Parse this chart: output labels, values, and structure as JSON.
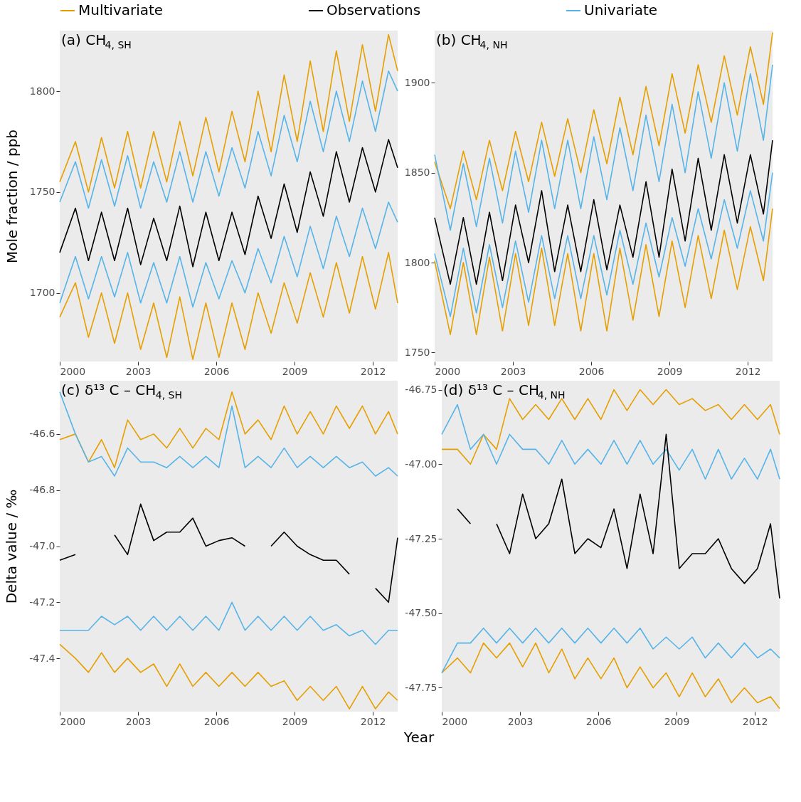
{
  "chart_data": [
    {
      "type": "line",
      "title": "(a) CH$_{4, SH}$",
      "ylabel": "Mole fraction / ppb",
      "legend": "top",
      "grid": false,
      "x": [
        2000.0,
        2000.6,
        2001.1,
        2001.6,
        2002.1,
        2002.6,
        2003.1,
        2003.6,
        2004.1,
        2004.6,
        2005.1,
        2005.6,
        2006.1,
        2006.6,
        2007.1,
        2007.6,
        2008.1,
        2008.6,
        2009.1,
        2009.6,
        2010.1,
        2010.6,
        2011.1,
        2011.6,
        2012.1,
        2012.6,
        2012.95
      ],
      "xlim": [
        2000,
        2012.95
      ],
      "xticks": [
        2000,
        2003,
        2006,
        2009,
        2012
      ],
      "ylim": [
        1666,
        1830
      ],
      "yticks": [
        1700,
        1750,
        1800
      ],
      "series": [
        {
          "name": "Multivariate",
          "color": "#e69f00",
          "values": [
            1755,
            1775,
            1750,
            1777,
            1752,
            1780,
            1752,
            1780,
            1755,
            1785,
            1758,
            1787,
            1760,
            1790,
            1765,
            1800,
            1770,
            1808,
            1775,
            1815,
            1780,
            1820,
            1785,
            1823,
            1790,
            1828,
            1810
          ]
        },
        {
          "color": "#e69f00",
          "values": [
            1688,
            1705,
            1678,
            1700,
            1675,
            1700,
            1672,
            1695,
            1668,
            1698,
            1667,
            1695,
            1668,
            1695,
            1672,
            1700,
            1680,
            1705,
            1685,
            1710,
            1688,
            1715,
            1690,
            1718,
            1692,
            1720,
            1695
          ]
        },
        {
          "name": "Univariate",
          "color": "#56b4e9",
          "values": [
            1745,
            1765,
            1742,
            1766,
            1743,
            1768,
            1742,
            1765,
            1745,
            1770,
            1745,
            1770,
            1748,
            1772,
            1752,
            1780,
            1758,
            1788,
            1765,
            1795,
            1770,
            1800,
            1775,
            1805,
            1780,
            1810,
            1800
          ]
        },
        {
          "color": "#56b4e9",
          "values": [
            1695,
            1718,
            1697,
            1718,
            1698,
            1720,
            1695,
            1715,
            1695,
            1718,
            1693,
            1715,
            1697,
            1716,
            1700,
            1722,
            1705,
            1728,
            1708,
            1733,
            1712,
            1738,
            1718,
            1742,
            1722,
            1745,
            1735
          ]
        },
        {
          "name": "Observations",
          "color": "#000000",
          "values": [
            1720,
            1742,
            1716,
            1740,
            1716,
            1742,
            1714,
            1737,
            1716,
            1743,
            1713,
            1740,
            1716,
            1740,
            1719,
            1748,
            1727,
            1754,
            1730,
            1760,
            1738,
            1770,
            1745,
            1772,
            1750,
            1776,
            1762
          ]
        }
      ]
    },
    {
      "type": "line",
      "title": "(b) CH$_{4, NH}$",
      "grid": false,
      "x": [
        2000.0,
        2000.6,
        2001.1,
        2001.6,
        2002.1,
        2002.6,
        2003.1,
        2003.6,
        2004.1,
        2004.6,
        2005.1,
        2005.6,
        2006.1,
        2006.6,
        2007.1,
        2007.6,
        2008.1,
        2008.6,
        2009.1,
        2009.6,
        2010.1,
        2010.6,
        2011.1,
        2011.6,
        2012.1,
        2012.6,
        2012.95
      ],
      "xlim": [
        2000,
        2012.95
      ],
      "xticks": [
        2000,
        2003,
        2006,
        2009,
        2012
      ],
      "ylim": [
        1745,
        1929
      ],
      "yticks": [
        1750,
        1800,
        1850,
        1900
      ],
      "series": [
        {
          "name": "Multivariate",
          "color": "#e69f00",
          "values": [
            1856,
            1830,
            1862,
            1835,
            1868,
            1840,
            1873,
            1845,
            1878,
            1848,
            1880,
            1850,
            1885,
            1855,
            1892,
            1860,
            1898,
            1865,
            1905,
            1872,
            1910,
            1878,
            1915,
            1882,
            1920,
            1888,
            1928
          ]
        },
        {
          "color": "#e69f00",
          "values": [
            1801,
            1760,
            1800,
            1760,
            1803,
            1762,
            1805,
            1765,
            1808,
            1765,
            1805,
            1762,
            1805,
            1762,
            1808,
            1768,
            1810,
            1770,
            1812,
            1775,
            1815,
            1780,
            1818,
            1785,
            1820,
            1790,
            1830
          ]
        },
        {
          "name": "Univariate",
          "color": "#56b4e9",
          "values": [
            1860,
            1818,
            1855,
            1820,
            1858,
            1822,
            1862,
            1828,
            1868,
            1830,
            1868,
            1830,
            1870,
            1835,
            1875,
            1840,
            1882,
            1845,
            1888,
            1850,
            1895,
            1858,
            1900,
            1862,
            1905,
            1868,
            1910
          ]
        },
        {
          "color": "#56b4e9",
          "values": [
            1805,
            1770,
            1808,
            1772,
            1810,
            1775,
            1812,
            1778,
            1815,
            1780,
            1815,
            1780,
            1815,
            1782,
            1818,
            1788,
            1822,
            1792,
            1825,
            1798,
            1830,
            1802,
            1835,
            1808,
            1840,
            1812,
            1850
          ]
        },
        {
          "name": "Observations",
          "color": "#000000",
          "values": [
            1825,
            1788,
            1825,
            1788,
            1828,
            1790,
            1832,
            1800,
            1840,
            1795,
            1832,
            1795,
            1835,
            1796,
            1832,
            1803,
            1845,
            1803,
            1852,
            1812,
            1858,
            1818,
            1860,
            1822,
            1860,
            1827,
            1868
          ]
        }
      ]
    },
    {
      "type": "line",
      "title": "(c) δ¹³ C – CH$_{4, SH}$",
      "ylabel": "Delta value / ‰",
      "xlabel": "Year",
      "grid": false,
      "x": [
        2000.0,
        2000.6,
        2001.1,
        2001.6,
        2002.1,
        2002.6,
        2003.1,
        2003.6,
        2004.1,
        2004.6,
        2005.1,
        2005.6,
        2006.1,
        2006.6,
        2007.1,
        2007.6,
        2008.1,
        2008.6,
        2009.1,
        2009.6,
        2010.1,
        2010.6,
        2011.1,
        2011.6,
        2012.1,
        2012.6,
        2012.95
      ],
      "xlim": [
        2000,
        2012.95
      ],
      "xticks": [
        2000,
        2003,
        2006,
        2009,
        2012
      ],
      "ylim": [
        -47.59,
        -46.41
      ],
      "yticks": [
        -47.4,
        -47.2,
        {
          "value": -47.0,
          "label": "-47.0"
        },
        -46.8,
        -46.6
      ],
      "series": [
        {
          "name": "Multivariate",
          "color": "#e69f00",
          "values": [
            -46.62,
            -46.6,
            -46.7,
            -46.62,
            -46.72,
            -46.55,
            -46.62,
            -46.6,
            -46.65,
            -46.58,
            -46.65,
            -46.58,
            -46.62,
            -46.45,
            -46.6,
            -46.55,
            -46.62,
            -46.5,
            -46.6,
            -46.52,
            -46.6,
            -46.5,
            -46.58,
            -46.5,
            -46.6,
            -46.52,
            -46.6
          ]
        },
        {
          "color": "#e69f00",
          "values": [
            -47.35,
            -47.4,
            -47.45,
            -47.38,
            -47.45,
            -47.4,
            -47.45,
            -47.42,
            -47.5,
            -47.42,
            -47.5,
            -47.45,
            -47.5,
            -47.45,
            -47.5,
            -47.45,
            -47.5,
            -47.48,
            -47.55,
            -47.5,
            -47.55,
            -47.5,
            -47.58,
            -47.5,
            -47.58,
            -47.52,
            -47.55
          ]
        },
        {
          "name": "Univariate",
          "color": "#56b4e9",
          "values": [
            -46.45,
            -46.6,
            -46.7,
            -46.68,
            -46.75,
            -46.65,
            -46.7,
            -46.7,
            -46.72,
            -46.68,
            -46.72,
            -46.68,
            -46.72,
            -46.5,
            -46.72,
            -46.68,
            -46.72,
            -46.65,
            -46.72,
            -46.68,
            -46.72,
            -46.68,
            -46.72,
            -46.7,
            -46.75,
            -46.72,
            -46.75
          ]
        },
        {
          "color": "#56b4e9",
          "values": [
            -47.3,
            -47.3,
            -47.3,
            -47.25,
            -47.28,
            -47.25,
            -47.3,
            -47.25,
            -47.3,
            -47.25,
            -47.3,
            -47.25,
            -47.3,
            -47.2,
            -47.3,
            -47.25,
            -47.3,
            -47.25,
            -47.3,
            -47.25,
            -47.3,
            -47.28,
            -47.32,
            -47.3,
            -47.35,
            -47.3,
            -47.3
          ]
        },
        {
          "name": "Observations",
          "color": "#000000",
          "values": [
            -47.05,
            -47.03,
            null,
            null,
            -46.96,
            -47.03,
            -46.85,
            -46.98,
            -46.95,
            -46.95,
            -46.9,
            -47.0,
            -46.98,
            -46.97,
            -47.0,
            null,
            -47.0,
            -46.95,
            -47.0,
            -47.03,
            -47.05,
            -47.05,
            -47.1,
            null,
            -47.15,
            -47.2,
            -46.97
          ]
        }
      ]
    },
    {
      "type": "line",
      "title": "(d) δ¹³ C – CH$_{4, NH}$",
      "grid": false,
      "x": [
        2000.0,
        2000.6,
        2001.1,
        2001.6,
        2002.1,
        2002.6,
        2003.1,
        2003.6,
        2004.1,
        2004.6,
        2005.1,
        2005.6,
        2006.1,
        2006.6,
        2007.1,
        2007.6,
        2008.1,
        2008.6,
        2009.1,
        2009.6,
        2010.1,
        2010.6,
        2011.1,
        2011.6,
        2012.1,
        2012.6,
        2012.95
      ],
      "xlim": [
        2000,
        2012.95
      ],
      "xticks": [
        2000,
        2003,
        2006,
        2009,
        2012
      ],
      "ylim": [
        -47.83,
        -46.72
      ],
      "yticks": [
        {
          "value": -47.75,
          "label": "-47.75"
        },
        {
          "value": -47.5,
          "label": "-47.50"
        },
        {
          "value": -47.25,
          "label": "-47.25"
        },
        {
          "value": -47.0,
          "label": "-47.00"
        },
        {
          "value": -46.75,
          "label": "-46.75"
        }
      ],
      "series": [
        {
          "name": "Multivariate",
          "color": "#e69f00",
          "values": [
            -46.95,
            -46.95,
            -47.0,
            -46.9,
            -46.95,
            -46.78,
            -46.85,
            -46.8,
            -46.85,
            -46.78,
            -46.85,
            -46.78,
            -46.85,
            -46.75,
            -46.82,
            -46.75,
            -46.8,
            -46.75,
            -46.8,
            -46.78,
            -46.82,
            -46.8,
            -46.85,
            -46.8,
            -46.85,
            -46.8,
            -46.9
          ]
        },
        {
          "color": "#e69f00",
          "values": [
            -47.7,
            -47.65,
            -47.7,
            -47.6,
            -47.65,
            -47.6,
            -47.68,
            -47.6,
            -47.7,
            -47.62,
            -47.72,
            -47.65,
            -47.72,
            -47.65,
            -47.75,
            -47.68,
            -47.75,
            -47.7,
            -47.78,
            -47.7,
            -47.78,
            -47.72,
            -47.8,
            -47.75,
            -47.8,
            -47.78,
            -47.82
          ]
        },
        {
          "name": "Univariate",
          "color": "#56b4e9",
          "values": [
            -46.9,
            -46.8,
            -46.95,
            -46.9,
            -47.0,
            -46.9,
            -46.95,
            -46.95,
            -47.0,
            -46.92,
            -47.0,
            -46.95,
            -47.0,
            -46.92,
            -47.0,
            -46.92,
            -47.0,
            -46.95,
            -47.02,
            -46.95,
            -47.05,
            -46.95,
            -47.05,
            -46.98,
            -47.05,
            -46.95,
            -47.05
          ]
        },
        {
          "color": "#56b4e9",
          "values": [
            -47.7,
            -47.6,
            -47.6,
            -47.55,
            -47.6,
            -47.55,
            -47.6,
            -47.55,
            -47.6,
            -47.55,
            -47.6,
            -47.55,
            -47.6,
            -47.55,
            -47.6,
            -47.55,
            -47.62,
            -47.58,
            -47.62,
            -47.58,
            -47.65,
            -47.6,
            -47.65,
            -47.6,
            -47.65,
            -47.62,
            -47.65
          ]
        },
        {
          "name": "Observations",
          "color": "#000000",
          "values": [
            null,
            -47.15,
            -47.2,
            null,
            -47.2,
            -47.3,
            -47.1,
            -47.25,
            -47.2,
            -47.05,
            -47.3,
            -47.25,
            -47.28,
            -47.15,
            -47.35,
            -47.1,
            -47.3,
            -46.9,
            -47.35,
            -47.3,
            -47.3,
            -47.25,
            -47.35,
            -47.4,
            -47.35,
            -47.2,
            -47.45
          ]
        }
      ]
    }
  ]
}
